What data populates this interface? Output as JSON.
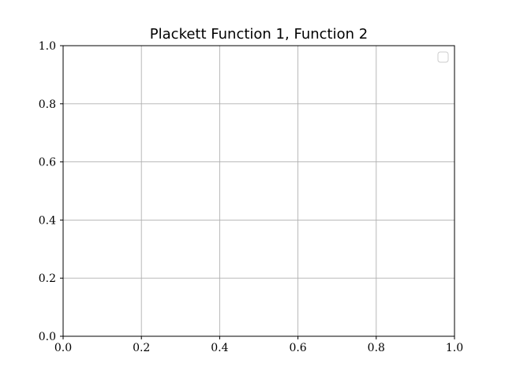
{
  "chart_data": {
    "type": "line",
    "title": "Plackett Function 1, Function 2",
    "xlabel": "",
    "ylabel": "",
    "xlim": [
      0.0,
      1.0
    ],
    "ylim": [
      0.0,
      1.0
    ],
    "x_ticks": [
      "0.0",
      "0.2",
      "0.4",
      "0.6",
      "0.8",
      "1.0"
    ],
    "y_ticks": [
      "0.0",
      "0.2",
      "0.4",
      "0.6",
      "0.8",
      "1.0"
    ],
    "grid": true,
    "legend": {
      "placement": "top-right",
      "entries": []
    },
    "series": [],
    "colors": {
      "axes": "#000000",
      "grid": "#b0b0b0",
      "legend_border": "#cccccc",
      "background": "#ffffff"
    }
  }
}
